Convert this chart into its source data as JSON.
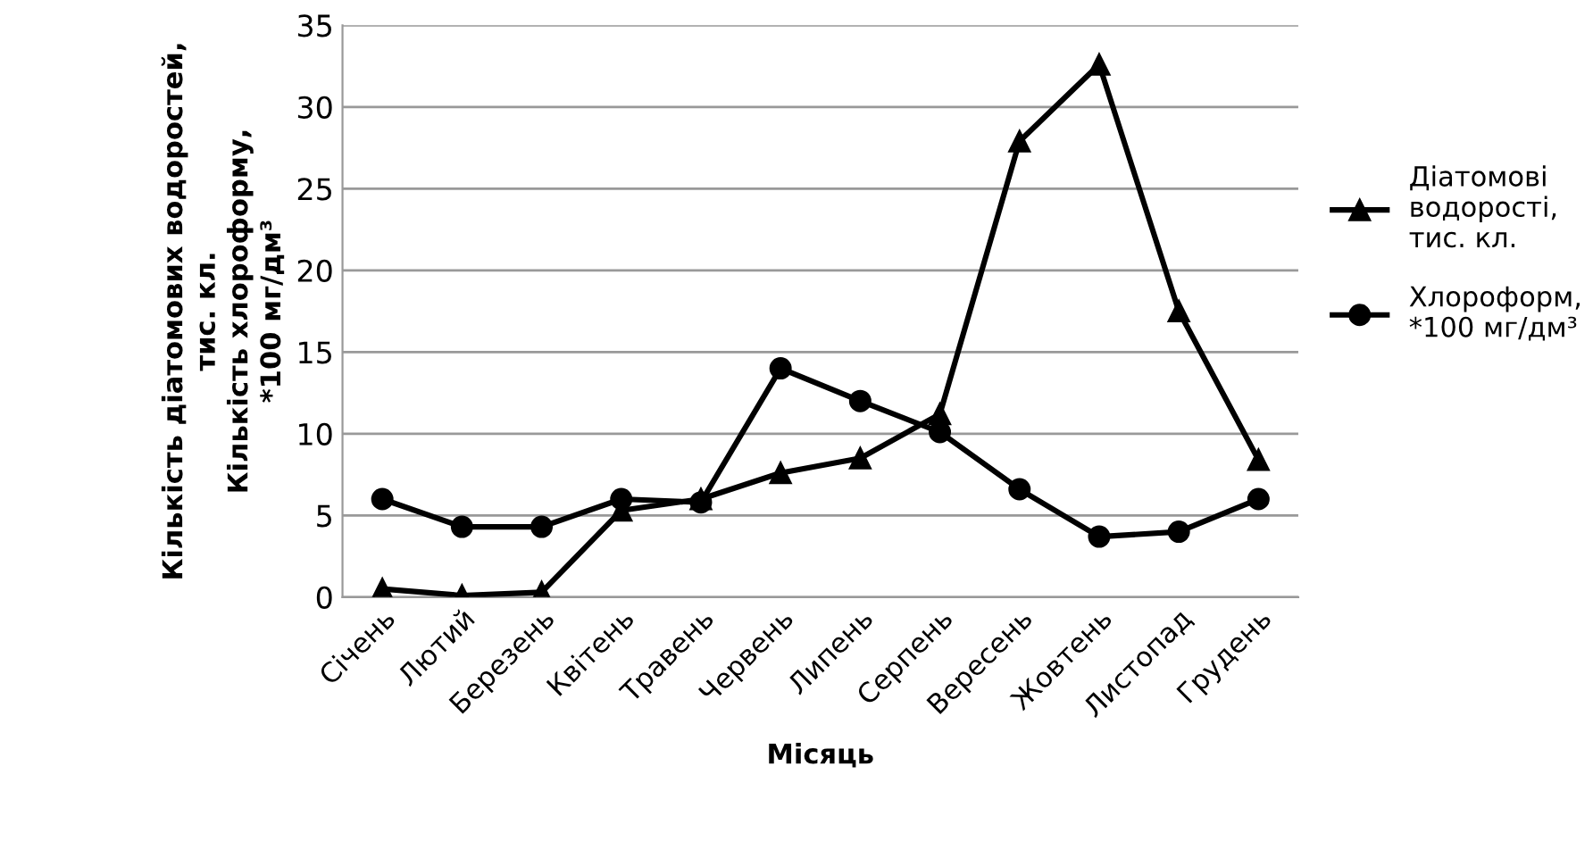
{
  "chart_data": {
    "type": "line",
    "xlabel": "Місяць",
    "ylabel": "Кількість діатомових водоростей,\nтис. кл.\nКількість хлороформу,\n*100 мг/дм³",
    "categories": [
      "Січень",
      "Лютий",
      "Березень",
      "Квітень",
      "Травень",
      "Червень",
      "Липень",
      "Серпень",
      "Вересень",
      "Жовтень",
      "Листопад",
      "Грудень"
    ],
    "series": [
      {
        "name": "Діатомові\nводорості,\nтис. кл.",
        "color": "#000000",
        "marker": "triangle",
        "values": [
          0.5,
          0.1,
          0.3,
          5.3,
          6.0,
          7.6,
          8.5,
          11.2,
          27.9,
          32.6,
          17.5,
          8.4
        ]
      },
      {
        "name": "Хлороформ,\n*100 мг/дм³",
        "color": "#000000",
        "marker": "circle",
        "values": [
          6.0,
          4.3,
          4.3,
          6.0,
          5.8,
          14.0,
          12.0,
          10.1,
          6.6,
          3.7,
          4.0,
          6.0
        ]
      }
    ],
    "ylim": [
      0,
      35
    ],
    "yticks": [
      0,
      5,
      10,
      15,
      20,
      25,
      30,
      35
    ],
    "grid": "y",
    "legend": "right",
    "line_style": "solid"
  }
}
